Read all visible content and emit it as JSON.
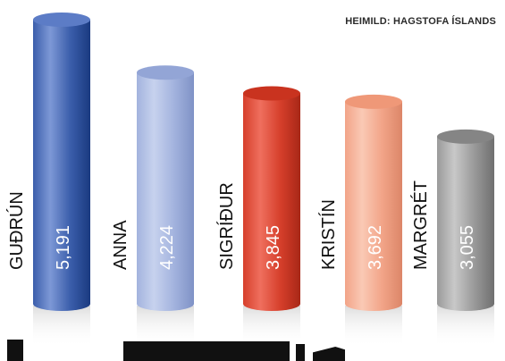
{
  "source_note": "HEIMILD: HAGSTOFA ÍSLANDS",
  "chart_data": {
    "type": "bar",
    "categories": [
      "GUÐRÚN",
      "ANNA",
      "SIGRÍÐUR",
      "KRISTÍN",
      "MARGRÉT"
    ],
    "values": [
      5191,
      4224,
      3845,
      3692,
      3055
    ],
    "value_labels": [
      "5,191",
      "4,224",
      "3,845",
      "3,692",
      "3,055"
    ],
    "ylim": [
      0,
      5191
    ],
    "grid": false,
    "legend": "none",
    "colors": [
      {
        "light": "#7d98d6",
        "mid": "#3b5eab",
        "dark": "#1a3a80",
        "top": "#5c7cc6"
      },
      {
        "light": "#c7d2ee",
        "mid": "#a3b3de",
        "dark": "#7f92c6",
        "top": "#93a5d6"
      },
      {
        "light": "#ef6f5e",
        "mid": "#d63f2b",
        "dark": "#a82717",
        "top": "#c9331f"
      },
      {
        "light": "#fac9b5",
        "mid": "#f2a488",
        "dark": "#dc8668",
        "top": "#ef9878"
      },
      {
        "light": "#c8c8c8",
        "mid": "#9a9a9a",
        "dark": "#6f6f6f",
        "top": "#858585"
      }
    ]
  }
}
